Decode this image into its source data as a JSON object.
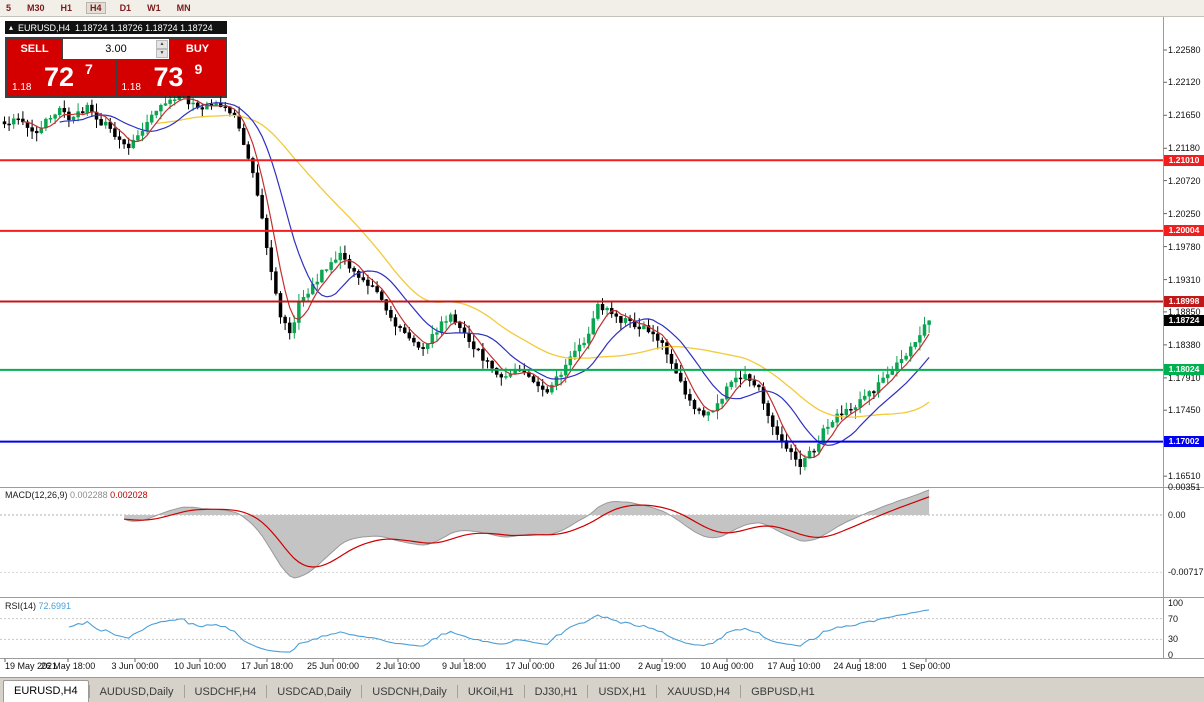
{
  "toolbar": {
    "timeframes": [
      {
        "label": "5",
        "active": false
      },
      {
        "label": "M30",
        "active": false
      },
      {
        "label": "H1",
        "active": false
      },
      {
        "label": "H4",
        "active": true
      },
      {
        "label": "D1",
        "active": false
      },
      {
        "label": "W1",
        "active": false
      },
      {
        "label": "MN",
        "active": false
      }
    ]
  },
  "chart": {
    "title_symbol": "EURUSD,H4",
    "title_quotes": "1.18724 1.18726 1.18724 1.18724",
    "trade_panel": {
      "sell": "SELL",
      "buy": "BUY",
      "volume": "3.00",
      "bid": {
        "prefix": "1.18",
        "big": "72",
        "sup": "7"
      },
      "ask": {
        "prefix": "1.18",
        "big": "73",
        "sup": "9"
      }
    },
    "price_axis": [
      "1.22580",
      "1.22120",
      "1.21650",
      "1.21180",
      "1.20720",
      "1.20250",
      "1.19780",
      "1.19310",
      "1.18850",
      "1.18380",
      "1.17910",
      "1.17450",
      "1.16980",
      "1.16510"
    ],
    "levels": [
      {
        "label": "1.21010",
        "value": 1.2101,
        "color": "#f01e1e"
      },
      {
        "label": "1.20004",
        "value": 1.20004,
        "color": "#f01e1e"
      },
      {
        "label": "1.18998",
        "value": 1.18998,
        "color": "#c01818"
      },
      {
        "label": "1.18024",
        "value": 1.18024,
        "color": "#00b050"
      },
      {
        "label": "1.17002",
        "value": 1.17002,
        "color": "#0000f0"
      }
    ],
    "current": {
      "label": "1.18724",
      "value": 1.18724,
      "color": "#000000"
    },
    "time_axis": [
      "19 May 2021",
      "26 May 18:00",
      "3 Jun 00:00",
      "10 Jun 10:00",
      "17 Jun 18:00",
      "25 Jun 00:00",
      "2 Jul 10:00",
      "9 Jul 18:00",
      "17 Jul 00:00",
      "26 Jul 11:00",
      "2 Aug 19:00",
      "10 Aug 00:00",
      "17 Aug 10:00",
      "24 Aug 18:00",
      "1 Sep 00:00"
    ]
  },
  "macd": {
    "name": "MACD(12,26,9)",
    "main": "0.002288",
    "signal": "0.002028",
    "axis": [
      {
        "label": "0.00351",
        "value": 0.00351
      },
      {
        "label": "0.00",
        "value": 0
      },
      {
        "label": "-0.00717",
        "value": -0.00717
      }
    ]
  },
  "rsi": {
    "name": "RSI(14)",
    "value": "72.6991",
    "axis": [
      {
        "label": "100",
        "value": 100
      },
      {
        "label": "70",
        "value": 70
      },
      {
        "label": "30",
        "value": 30
      },
      {
        "label": "0",
        "value": 0
      }
    ],
    "levels": [
      70,
      30
    ]
  },
  "tabs": [
    {
      "label": "EURUSD,H4",
      "active": true
    },
    {
      "label": "AUDUSD,Daily",
      "active": false
    },
    {
      "label": "USDCHF,H4",
      "active": false
    },
    {
      "label": "USDCAD,Daily",
      "active": false
    },
    {
      "label": "USDCNH,Daily",
      "active": false
    },
    {
      "label": "UKOil,H1",
      "active": false
    },
    {
      "label": "DJ30,H1",
      "active": false
    },
    {
      "label": "USDX,H1",
      "active": false
    },
    {
      "label": "XAUUSD,H4",
      "active": false
    },
    {
      "label": "GBPUSD,H1",
      "active": false
    }
  ],
  "chart_data": {
    "type": "candlestick",
    "symbol": "EURUSD",
    "timeframe": "H4",
    "visible_range": {
      "start": "19 May 2021",
      "end": "1 Sep 2021"
    },
    "price_range": [
      1.1651,
      1.2258
    ],
    "candle_count": 202,
    "close_anchors": [
      [
        0,
        1.215
      ],
      [
        3,
        1.2165
      ],
      [
        6,
        1.214
      ],
      [
        9,
        1.2155
      ],
      [
        12,
        1.217
      ],
      [
        15,
        1.216
      ],
      [
        18,
        1.2175
      ],
      [
        21,
        1.2155
      ],
      [
        24,
        1.214
      ],
      [
        27,
        1.212
      ],
      [
        30,
        1.2145
      ],
      [
        33,
        1.217
      ],
      [
        36,
        1.2185
      ],
      [
        39,
        1.219
      ],
      [
        42,
        1.2175
      ],
      [
        45,
        1.2185
      ],
      [
        48,
        1.218
      ],
      [
        51,
        1.215
      ],
      [
        54,
        1.208
      ],
      [
        57,
        1.198
      ],
      [
        60,
        1.188
      ],
      [
        62,
        1.1855
      ],
      [
        64,
        1.1895
      ],
      [
        67,
        1.192
      ],
      [
        70,
        1.195
      ],
      [
        73,
        1.1965
      ],
      [
        76,
        1.194
      ],
      [
        79,
        1.1925
      ],
      [
        82,
        1.19
      ],
      [
        85,
        1.187
      ],
      [
        88,
        1.1845
      ],
      [
        91,
        1.1835
      ],
      [
        94,
        1.186
      ],
      [
        97,
        1.188
      ],
      [
        100,
        1.185
      ],
      [
        103,
        1.183
      ],
      [
        106,
        1.18
      ],
      [
        109,
        1.179
      ],
      [
        112,
        1.1805
      ],
      [
        115,
        1.178
      ],
      [
        118,
        1.1772
      ],
      [
        121,
        1.18
      ],
      [
        124,
        1.1825
      ],
      [
        127,
        1.1855
      ],
      [
        129,
        1.1898
      ],
      [
        131,
        1.1885
      ],
      [
        134,
        1.1872
      ],
      [
        137,
        1.1868
      ],
      [
        140,
        1.1858
      ],
      [
        143,
        1.184
      ],
      [
        146,
        1.1795
      ],
      [
        149,
        1.1755
      ],
      [
        152,
        1.174
      ],
      [
        155,
        1.1752
      ],
      [
        158,
        1.1785
      ],
      [
        161,
        1.18
      ],
      [
        164,
        1.1775
      ],
      [
        167,
        1.1725
      ],
      [
        170,
        1.169
      ],
      [
        173,
        1.1668
      ],
      [
        176,
        1.169
      ],
      [
        179,
        1.1725
      ],
      [
        182,
        1.1742
      ],
      [
        185,
        1.1752
      ],
      [
        188,
        1.1768
      ],
      [
        191,
        1.1788
      ],
      [
        194,
        1.1808
      ],
      [
        197,
        1.1835
      ],
      [
        200,
        1.1865
      ],
      [
        201,
        1.18724
      ]
    ],
    "indicators": {
      "ma_fast_red": 5,
      "ma_mid_blue": 13,
      "ma_slow_yellow": 34,
      "macd": [
        12,
        26,
        9
      ],
      "rsi": 14
    },
    "colors": {
      "bull": "#0aa550",
      "bear": "#000000",
      "ma_red": "#c03030",
      "ma_blue": "#3030c0",
      "ma_yellow": "#f2ca3a",
      "macd_area": "#c4c4c4",
      "macd_line": "#9a9a9a",
      "macd_signal": "#cc0000",
      "rsi_line": "#4a9fd8"
    }
  }
}
